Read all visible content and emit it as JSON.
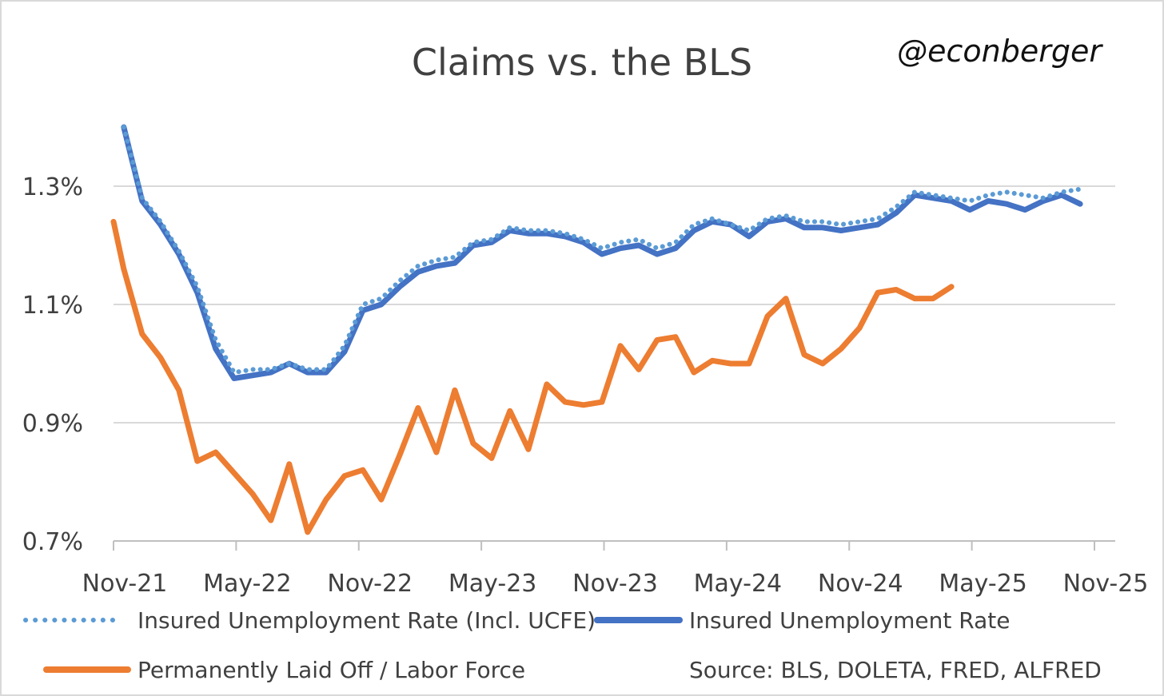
{
  "chart_data": {
    "type": "line",
    "title": "Claims vs. the BLS",
    "subtitle": "@econberger",
    "source": "Source: BLS, DOLETA, FRED, ALFRED",
    "ylim": [
      0.7,
      1.38
    ],
    "y_ticks": [
      "0.7%",
      "0.9%",
      "1.1%",
      "1.3%"
    ],
    "y_tick_values": [
      0.7,
      0.9,
      1.1,
      1.3
    ],
    "x_ticks": [
      "Nov-21",
      "May-22",
      "Nov-22",
      "May-23",
      "Nov-23",
      "May-24",
      "Nov-24",
      "May-25",
      "Nov-25"
    ],
    "x_range_months": [
      0,
      48
    ],
    "grid": true,
    "legend_position": "bottom",
    "colors": {
      "insured_incl_ucfe": "#5b9bd5",
      "insured": "#4472c4",
      "laid_off": "#ed7d31",
      "grid": "#d9d9d9",
      "axis": "#bfbfbf"
    },
    "series": [
      {
        "name": "Insured Unemployment Rate (Incl. UCFE)",
        "style": "dotted",
        "x": [
          0.5,
          1.4,
          2.3,
          3.2,
          4.1,
          5.0,
          5.9,
          6.8,
          7.7,
          8.6,
          9.5,
          10.4,
          11.3,
          12.2,
          13.1,
          14.0,
          14.9,
          15.8,
          16.7,
          17.6,
          18.5,
          19.4,
          20.3,
          21.2,
          22.1,
          23.0,
          23.9,
          24.8,
          25.7,
          26.6,
          27.5,
          28.4,
          29.3,
          30.2,
          31.1,
          32.0,
          32.9,
          33.8,
          34.7,
          35.6,
          36.5,
          37.4,
          38.3,
          39.2,
          40.1,
          41.0,
          41.9,
          42.8,
          43.7,
          44.6,
          45.5,
          46.4,
          47.3
        ],
        "values": [
          1.4,
          1.28,
          1.24,
          1.19,
          1.13,
          1.04,
          0.985,
          0.99,
          0.99,
          1.0,
          0.99,
          0.99,
          1.03,
          1.1,
          1.11,
          1.14,
          1.165,
          1.175,
          1.18,
          1.205,
          1.21,
          1.23,
          1.225,
          1.225,
          1.22,
          1.21,
          1.195,
          1.205,
          1.21,
          1.195,
          1.205,
          1.235,
          1.245,
          1.235,
          1.225,
          1.245,
          1.25,
          1.24,
          1.24,
          1.235,
          1.24,
          1.245,
          1.265,
          1.29,
          1.285,
          1.28,
          1.275,
          1.285,
          1.29,
          1.285,
          1.28,
          1.29,
          1.295
        ]
      },
      {
        "name": "Insured Unemployment Rate",
        "style": "solid",
        "x": [
          0.5,
          1.4,
          2.3,
          3.2,
          4.1,
          5.0,
          5.9,
          6.8,
          7.7,
          8.6,
          9.5,
          10.4,
          11.3,
          12.2,
          13.1,
          14.0,
          14.9,
          15.8,
          16.7,
          17.6,
          18.5,
          19.4,
          20.3,
          21.2,
          22.1,
          23.0,
          23.9,
          24.8,
          25.7,
          26.6,
          27.5,
          28.4,
          29.3,
          30.2,
          31.1,
          32.0,
          32.9,
          33.8,
          34.7,
          35.6,
          36.5,
          37.4,
          38.3,
          39.2,
          40.1,
          41.0,
          41.9,
          42.8,
          43.7,
          44.6,
          45.5,
          46.4,
          47.3
        ],
        "values": [
          1.4,
          1.275,
          1.235,
          1.185,
          1.12,
          1.025,
          0.975,
          0.98,
          0.985,
          1.0,
          0.985,
          0.985,
          1.02,
          1.09,
          1.1,
          1.13,
          1.155,
          1.165,
          1.17,
          1.2,
          1.205,
          1.225,
          1.22,
          1.22,
          1.215,
          1.205,
          1.185,
          1.195,
          1.2,
          1.185,
          1.195,
          1.225,
          1.24,
          1.235,
          1.215,
          1.24,
          1.245,
          1.23,
          1.23,
          1.225,
          1.23,
          1.235,
          1.255,
          1.285,
          1.28,
          1.275,
          1.26,
          1.275,
          1.27,
          1.26,
          1.275,
          1.285,
          1.27
        ]
      },
      {
        "name": "Permanently Laid Off / Labor Force",
        "style": "solid",
        "x": [
          0,
          0.5,
          1.4,
          2.3,
          3.2,
          4.1,
          5.0,
          5.9,
          6.8,
          7.7,
          8.6,
          9.5,
          10.4,
          11.3,
          12.2,
          13.1,
          14.0,
          14.9,
          15.8,
          16.7,
          17.6,
          18.5,
          19.4,
          20.3,
          21.2,
          22.1,
          23.0,
          23.9,
          24.8,
          25.7,
          26.6,
          27.5,
          28.4,
          29.3,
          30.2,
          31.1,
          32.0,
          32.9,
          33.8,
          34.7,
          35.6,
          36.5,
          37.4,
          38.3,
          39.2,
          40.1,
          41.0
        ],
        "values": [
          1.24,
          1.16,
          1.05,
          1.01,
          0.955,
          0.835,
          0.85,
          0.815,
          0.78,
          0.735,
          0.83,
          0.715,
          0.77,
          0.81,
          0.82,
          0.77,
          0.845,
          0.925,
          0.85,
          0.955,
          0.865,
          0.84,
          0.92,
          0.855,
          0.965,
          0.935,
          0.93,
          0.935,
          1.03,
          0.99,
          1.04,
          1.045,
          0.985,
          1.005,
          1.0,
          1.0,
          1.08,
          1.11,
          1.015,
          1.0,
          1.025,
          1.06,
          1.12,
          1.125,
          1.11,
          1.11,
          1.13
        ]
      }
    ]
  }
}
